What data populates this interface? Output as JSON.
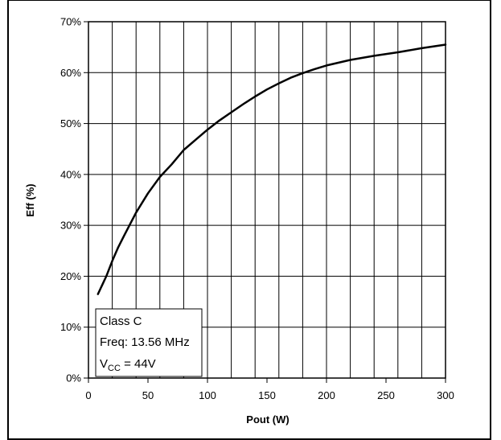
{
  "chart_data": {
    "type": "line",
    "xlabel": "Pout (W)",
    "ylabel": "Eff (%)",
    "xlim": [
      0,
      300
    ],
    "ylim": [
      0,
      70
    ],
    "x_ticks": [
      0,
      50,
      100,
      150,
      200,
      250,
      300
    ],
    "x_tick_labels": [
      "0",
      "50",
      "100",
      "150",
      "200",
      "250",
      "300"
    ],
    "x_gridlines_step": 20,
    "y_ticks": [
      0,
      10,
      20,
      30,
      40,
      50,
      60,
      70
    ],
    "y_tick_labels": [
      "0%",
      "10%",
      "20%",
      "30%",
      "40%",
      "50%",
      "60%",
      "70%"
    ],
    "grid": true,
    "series": [
      {
        "name": "",
        "color": "#000000",
        "x": [
          8,
          15,
          20,
          25,
          30,
          40,
          50,
          60,
          70,
          80,
          90,
          100,
          110,
          120,
          130,
          140,
          150,
          160,
          170,
          180,
          190,
          200,
          220,
          240,
          260,
          280,
          300
        ],
        "y": [
          16.5,
          20,
          23,
          25.7,
          28,
          32.5,
          36.3,
          39.5,
          42,
          44.8,
          46.8,
          48.8,
          50.6,
          52.2,
          53.8,
          55.3,
          56.7,
          57.9,
          59,
          59.9,
          60.7,
          61.4,
          62.5,
          63.3,
          64,
          64.8,
          65.5
        ]
      }
    ],
    "annotation": {
      "lines": [
        "Class C",
        "Freq: 13.56 MHz",
        "V",
        "CC",
        " = 44V"
      ],
      "placement": "bottom-left"
    }
  },
  "colors": {
    "line": "#000000",
    "grid": "#000000",
    "background": "#ffffff",
    "frame": "#000000"
  }
}
